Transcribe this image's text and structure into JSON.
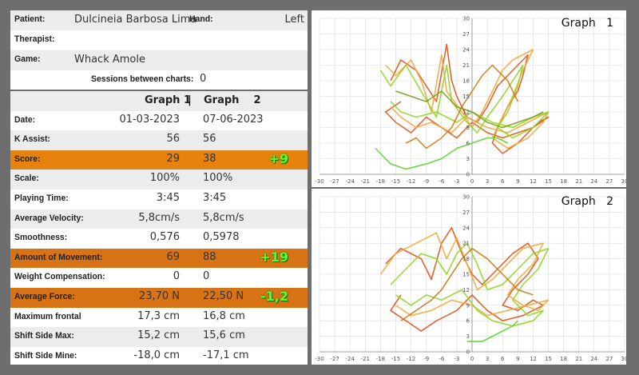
{
  "patient": {
    "label": "Patient:",
    "value": "Dulcineia Barbosa Lima",
    "hand_label": "Hand:",
    "hand_value": "Left"
  },
  "therapist": {
    "label": "Therapist:",
    "value": ""
  },
  "game": {
    "label": "Game:",
    "value": "Whack Amole"
  },
  "sessions": {
    "label": "Sessions between charts:",
    "value": "0"
  },
  "table": {
    "header": {
      "graph1": "Graph 1",
      "separator": "|",
      "graph2": "Graph    2"
    },
    "rows": [
      {
        "label": "Date:",
        "v1": "01-03-2023",
        "v2": "07-06-2023",
        "delta": ""
      },
      {
        "label": "K Assist:",
        "v1": "56",
        "v2": "56",
        "delta": ""
      },
      {
        "label": "Score:",
        "v1": "29",
        "v2": "38",
        "delta": "+9"
      },
      {
        "label": "Scale:",
        "v1": "100%",
        "v2": "100%",
        "delta": ""
      },
      {
        "label": "Playing Time:",
        "v1": "3:45",
        "v2": "3:45",
        "delta": ""
      },
      {
        "label": "Average Velocity:",
        "v1": "5,8cm/s",
        "v2": "5,8cm/s",
        "delta": ""
      },
      {
        "label": "Smoothness:",
        "v1": "0,576",
        "v2": "0,5978",
        "delta": ""
      },
      {
        "label": "Amount of Movement:",
        "v1": "69",
        "v2": "88",
        "delta": "+19"
      },
      {
        "label": "Weight Compensation:",
        "v1": "0",
        "v2": "0",
        "delta": ""
      },
      {
        "label": "Average Force:",
        "v1": "23,70 N",
        "v2": "22,50 N",
        "delta": "-1,2"
      },
      {
        "label": "Maximum frontal",
        "v1": "17,3 cm",
        "v2": "16,8 cm",
        "delta": ""
      },
      {
        "label": "Shift Side Max:",
        "v1": "15,2 cm",
        "v2": "15,6 cm",
        "delta": ""
      },
      {
        "label": "Shift Side Mine:",
        "v1": "-18,0 cm",
        "v2": "-17,1 cm",
        "delta": ""
      }
    ]
  },
  "colors": {
    "score_row": "#e7820f",
    "movement_row": "#d77314",
    "force_row": "#d77314",
    "delta_text": "#5cff2a"
  },
  "chart_data": [
    {
      "type": "line",
      "title": "Graph   1",
      "xlim": [
        -30,
        30
      ],
      "ylim": [
        0,
        30
      ],
      "x_ticks": [
        "-30",
        "-27",
        "-24",
        "-21",
        "-18",
        "-15",
        "-12",
        "-9",
        "-6",
        "-3",
        "0",
        "3",
        "6",
        "9",
        "12",
        "15",
        "18",
        "21",
        "24",
        "27",
        "30"
      ],
      "y_ticks": [
        "30",
        "27",
        "24",
        "21",
        "18",
        "15",
        "12",
        "9",
        "6",
        "3",
        "0"
      ],
      "grid": true,
      "series": [
        {
          "color": "#e0521a",
          "points": [
            [
              -16,
              18
            ],
            [
              -14,
              22
            ],
            [
              -11,
              20
            ],
            [
              -9,
              17
            ],
            [
              -7,
              14
            ],
            [
              -5,
              25
            ],
            [
              -4,
              18
            ],
            [
              -3,
              15
            ],
            [
              -1,
              11
            ],
            [
              1,
              10
            ],
            [
              3,
              13
            ],
            [
              5,
              17
            ],
            [
              7,
              19
            ],
            [
              9,
              21
            ],
            [
              11,
              23
            ],
            [
              10,
              19
            ],
            [
              9,
              16
            ],
            [
              7,
              13
            ],
            [
              5,
              9
            ],
            [
              4,
              6
            ],
            [
              6,
              4
            ],
            [
              9,
              6
            ],
            [
              13,
              10
            ],
            [
              15,
              11
            ],
            [
              12,
              9
            ],
            [
              9,
              8
            ],
            [
              6,
              7
            ],
            [
              3,
              8
            ],
            [
              0,
              10
            ],
            [
              -3,
              7
            ],
            [
              -6,
              9
            ],
            [
              -9,
              11
            ],
            [
              -12,
              8
            ],
            [
              -15,
              10
            ],
            [
              -17,
              12
            ],
            [
              -14,
              14
            ]
          ]
        },
        {
          "color": "#f0a93a",
          "points": [
            [
              -17,
              21
            ],
            [
              -15,
              19
            ],
            [
              -12,
              22
            ],
            [
              -10,
              18
            ],
            [
              -8,
              12
            ],
            [
              -6,
              23
            ],
            [
              -5,
              16
            ],
            [
              -2,
              12
            ],
            [
              0,
              9
            ],
            [
              2,
              12
            ],
            [
              4,
              16
            ],
            [
              6,
              20
            ],
            [
              8,
              22
            ],
            [
              12,
              24
            ],
            [
              10,
              20
            ],
            [
              8,
              15
            ],
            [
              6,
              11
            ],
            [
              4,
              7
            ],
            [
              7,
              5
            ],
            [
              11,
              7
            ],
            [
              14,
              10
            ],
            [
              15,
              12
            ],
            [
              11,
              10
            ],
            [
              7,
              8
            ],
            [
              3,
              9
            ],
            [
              -1,
              11
            ],
            [
              -4,
              8
            ],
            [
              -8,
              10
            ],
            [
              -11,
              9
            ],
            [
              -14,
              11
            ],
            [
              -16,
              13
            ]
          ]
        },
        {
          "color": "#8fd61e",
          "points": [
            [
              -18,
              20
            ],
            [
              -16,
              17
            ],
            [
              -13,
              21
            ],
            [
              -10,
              16
            ],
            [
              -7,
              11
            ],
            [
              -5,
              21
            ],
            [
              -4,
              14
            ],
            [
              -1,
              10
            ],
            [
              1,
              8
            ],
            [
              3,
              11
            ],
            [
              6,
              15
            ],
            [
              8,
              18
            ],
            [
              10,
              21
            ],
            [
              9,
              17
            ],
            [
              7,
              12
            ],
            [
              5,
              9
            ],
            [
              8,
              7
            ],
            [
              12,
              9
            ],
            [
              15,
              12
            ],
            [
              12,
              11
            ],
            [
              8,
              9
            ],
            [
              4,
              10
            ],
            [
              0,
              12
            ],
            [
              -3,
              10
            ],
            [
              -7,
              12
            ],
            [
              -11,
              11
            ],
            [
              -14,
              12
            ],
            [
              -16,
              14
            ]
          ]
        },
        {
          "color": "#7a9c1a",
          "points": [
            [
              -15,
              16
            ],
            [
              -12,
              15
            ],
            [
              -9,
              14
            ],
            [
              -6,
              16
            ],
            [
              -3,
              13
            ],
            [
              0,
              12
            ],
            [
              3,
              10
            ],
            [
              6,
              9
            ],
            [
              9,
              10
            ],
            [
              12,
              11
            ],
            [
              14,
              12
            ]
          ]
        },
        {
          "color": "#5ad42a",
          "points": [
            [
              -19,
              5
            ],
            [
              -16,
              2
            ],
            [
              -13,
              1
            ],
            [
              -9,
              2
            ],
            [
              -6,
              3
            ],
            [
              -3,
              5
            ],
            [
              0,
              6
            ],
            [
              3,
              7
            ],
            [
              5,
              7
            ],
            [
              7,
              6
            ]
          ]
        },
        {
          "color": "#cc7a14",
          "points": [
            [
              -13,
              6
            ],
            [
              -11,
              7
            ],
            [
              -9,
              5
            ],
            [
              -6,
              7
            ],
            [
              -4,
              9
            ],
            [
              -2,
              13
            ],
            [
              0,
              16
            ],
            [
              2,
              19
            ],
            [
              4,
              21
            ],
            [
              7,
              18
            ],
            [
              9,
              14
            ]
          ]
        }
      ]
    },
    {
      "type": "line",
      "title": "Graph   2",
      "xlim": [
        -30,
        30
      ],
      "ylim": [
        0,
        30
      ],
      "x_ticks": [
        "-30",
        "-27",
        "-24",
        "-21",
        "-18",
        "-15",
        "-12",
        "-9",
        "-6",
        "-3",
        "0",
        "3",
        "6",
        "9",
        "12",
        "15",
        "18",
        "21",
        "24",
        "27",
        "30"
      ],
      "y_ticks": [
        "30",
        "27",
        "24",
        "21",
        "18",
        "15",
        "12",
        "9",
        "6",
        "3",
        "0"
      ],
      "grid": true,
      "series": [
        {
          "color": "#e0521a",
          "points": [
            [
              -17,
              17
            ],
            [
              -14,
              20
            ],
            [
              -10,
              18
            ],
            [
              -8,
              14
            ],
            [
              -6,
              21
            ],
            [
              -4,
              24
            ],
            [
              -2,
              19
            ],
            [
              0,
              15
            ],
            [
              2,
              13
            ],
            [
              5,
              16
            ],
            [
              8,
              19
            ],
            [
              11,
              21
            ],
            [
              13,
              18
            ],
            [
              11,
              15
            ],
            [
              8,
              12
            ],
            [
              6,
              9
            ],
            [
              9,
              8
            ],
            [
              12,
              10
            ],
            [
              14,
              9
            ],
            [
              10,
              7
            ],
            [
              6,
              6
            ],
            [
              3,
              8
            ],
            [
              0,
              11
            ],
            [
              -3,
              8
            ],
            [
              -7,
              6
            ],
            [
              -10,
              4
            ],
            [
              -13,
              6
            ],
            [
              -16,
              8
            ],
            [
              -14,
              11
            ]
          ]
        },
        {
          "color": "#f0a93a",
          "points": [
            [
              -18,
              15
            ],
            [
              -15,
              19
            ],
            [
              -11,
              21
            ],
            [
              -7,
              23
            ],
            [
              -5,
              18
            ],
            [
              -3,
              22
            ],
            [
              -1,
              17
            ],
            [
              1,
              12
            ],
            [
              4,
              14
            ],
            [
              7,
              17
            ],
            [
              10,
              20
            ],
            [
              14,
              21
            ],
            [
              12,
              17
            ],
            [
              9,
              14
            ],
            [
              7,
              11
            ],
            [
              10,
              9
            ],
            [
              13,
              8
            ],
            [
              15,
              10
            ],
            [
              11,
              9
            ],
            [
              7,
              8
            ],
            [
              3,
              7
            ],
            [
              0,
              9
            ],
            [
              -4,
              10
            ],
            [
              -8,
              8
            ],
            [
              -12,
              7
            ],
            [
              -15,
              9
            ]
          ]
        },
        {
          "color": "#8fd61e",
          "points": [
            [
              -16,
              13
            ],
            [
              -13,
              16
            ],
            [
              -10,
              19
            ],
            [
              -7,
              18
            ],
            [
              -5,
              15
            ],
            [
              -3,
              19
            ],
            [
              -1,
              21
            ],
            [
              1,
              17
            ],
            [
              3,
              12
            ],
            [
              6,
              13
            ],
            [
              9,
              16
            ],
            [
              12,
              19
            ],
            [
              15,
              20
            ],
            [
              13,
              16
            ],
            [
              10,
              13
            ],
            [
              8,
              10
            ],
            [
              11,
              7
            ],
            [
              14,
              8
            ],
            [
              12,
              6
            ],
            [
              8,
              5
            ],
            [
              4,
              6
            ],
            [
              1,
              8
            ],
            [
              -2,
              12
            ],
            [
              -6,
              10
            ],
            [
              -9,
              11
            ],
            [
              -12,
              9
            ],
            [
              -15,
              11
            ]
          ]
        },
        {
          "color": "#5ad42a",
          "points": [
            [
              -1,
              2
            ],
            [
              2,
              2
            ],
            [
              4,
              3
            ],
            [
              6,
              4
            ],
            [
              8,
              5
            ],
            [
              9,
              6
            ]
          ]
        },
        {
          "color": "#cc7a14",
          "points": [
            [
              -14,
              6
            ],
            [
              -11,
              8
            ],
            [
              -8,
              10
            ],
            [
              -6,
              12
            ],
            [
              -4,
              15
            ],
            [
              -2,
              18
            ],
            [
              0,
              20
            ],
            [
              3,
              18
            ],
            [
              6,
              15
            ],
            [
              9,
              12
            ],
            [
              12,
              11
            ]
          ]
        }
      ]
    }
  ]
}
